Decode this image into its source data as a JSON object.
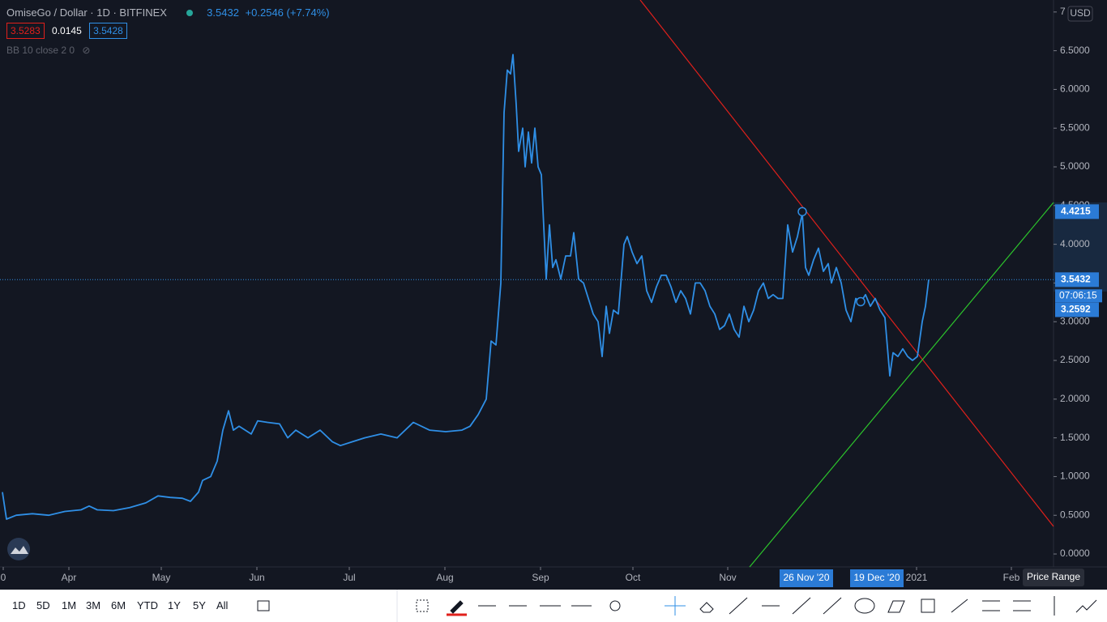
{
  "header": {
    "symbol": "OmiseGo / Dollar · 1D · BITFINEX",
    "last": "3.5432",
    "change": "+0.2546 (+7.74%)",
    "bid": "3.5283",
    "spread": "0.0145",
    "ask": "3.5428",
    "indicator": "BB 10 close 2 0",
    "currency": "USD"
  },
  "chart_data": {
    "type": "line",
    "color": "#2f8fe6",
    "xlim": [
      0,
      1300
    ],
    "ylim": [
      -0.167,
      7.155
    ],
    "x": [
      3,
      8,
      20,
      40,
      60,
      80,
      100,
      110,
      120,
      140,
      160,
      180,
      195,
      210,
      225,
      235,
      245,
      250,
      260,
      268,
      275,
      282,
      288,
      295,
      310,
      318,
      330,
      345,
      355,
      365,
      380,
      395,
      410,
      420,
      435,
      450,
      470,
      490,
      510,
      530,
      550,
      570,
      580,
      590,
      600,
      606,
      612,
      618,
      622,
      626,
      630,
      633,
      637,
      640,
      645,
      648,
      652,
      656,
      660,
      664,
      668,
      674,
      678,
      682,
      686,
      692,
      698,
      704,
      708,
      714,
      720,
      726,
      732,
      738,
      743,
      748,
      752,
      757,
      763,
      770,
      774,
      780,
      786,
      792,
      798,
      804,
      810,
      816,
      822,
      828,
      834,
      840,
      846,
      852,
      858,
      864,
      870,
      876,
      882,
      888,
      894,
      900,
      906,
      912,
      918,
      924,
      930,
      936,
      942,
      948,
      954,
      960,
      966,
      972,
      978,
      984,
      990,
      994,
      998,
      1004,
      1010,
      1016,
      1022,
      1026,
      1032,
      1038,
      1044,
      1050,
      1056,
      1062,
      1068,
      1074,
      1080,
      1086,
      1092,
      1098,
      1102,
      1108,
      1114,
      1120,
      1126,
      1132,
      1138,
      1142,
      1146
    ],
    "values": [
      0.8,
      0.45,
      0.5,
      0.52,
      0.5,
      0.55,
      0.57,
      0.62,
      0.57,
      0.56,
      0.6,
      0.66,
      0.75,
      0.73,
      0.72,
      0.68,
      0.8,
      0.95,
      1.0,
      1.2,
      1.6,
      1.85,
      1.6,
      1.65,
      1.55,
      1.72,
      1.7,
      1.68,
      1.5,
      1.6,
      1.5,
      1.6,
      1.45,
      1.4,
      1.45,
      1.5,
      1.55,
      1.5,
      1.7,
      1.6,
      1.58,
      1.6,
      1.65,
      1.8,
      2.0,
      2.75,
      2.7,
      3.5,
      5.7,
      6.25,
      6.2,
      6.45,
      5.8,
      5.2,
      5.5,
      5.0,
      5.45,
      5.05,
      5.5,
      5.0,
      4.9,
      3.55,
      4.25,
      3.7,
      3.8,
      3.55,
      3.85,
      3.85,
      4.15,
      3.55,
      3.5,
      3.3,
      3.1,
      3.0,
      2.55,
      3.2,
      2.85,
      3.15,
      3.1,
      4.0,
      4.1,
      3.9,
      3.75,
      3.85,
      3.4,
      3.25,
      3.45,
      3.6,
      3.6,
      3.45,
      3.25,
      3.4,
      3.3,
      3.1,
      3.5,
      3.5,
      3.4,
      3.2,
      3.1,
      2.9,
      2.95,
      3.1,
      2.9,
      2.8,
      3.2,
      3.0,
      3.15,
      3.4,
      3.5,
      3.3,
      3.35,
      3.3,
      3.3,
      4.25,
      3.9,
      4.1,
      4.4,
      3.7,
      3.6,
      3.8,
      3.95,
      3.65,
      3.75,
      3.5,
      3.7,
      3.5,
      3.15,
      3.0,
      3.3,
      3.25,
      3.35,
      3.2,
      3.3,
      3.15,
      3.05,
      2.3,
      2.6,
      2.55,
      2.65,
      2.55,
      2.5,
      2.55,
      3.0,
      3.2,
      3.5432
    ],
    "xticks": [
      {
        "value": 4,
        "label": "0"
      },
      {
        "value": 85,
        "label": "Apr"
      },
      {
        "value": 199,
        "label": "May"
      },
      {
        "value": 317,
        "label": "Jun"
      },
      {
        "value": 431,
        "label": "Jul"
      },
      {
        "value": 549,
        "label": "Aug"
      },
      {
        "value": 667,
        "label": "Sep"
      },
      {
        "value": 781,
        "label": "Oct"
      },
      {
        "value": 898,
        "label": "Nov"
      },
      {
        "value": 1131,
        "label": "2021"
      },
      {
        "value": 1248,
        "label": "Feb"
      }
    ],
    "yticks": [
      {
        "value": 0,
        "label": "0.0000"
      },
      {
        "value": 0.5,
        "label": "0.5000"
      },
      {
        "value": 1,
        "label": "1.0000"
      },
      {
        "value": 1.5,
        "label": "1.5000"
      },
      {
        "value": 2,
        "label": "2.0000"
      },
      {
        "value": 2.5,
        "label": "2.5000"
      },
      {
        "value": 3,
        "label": "3.0000"
      },
      {
        "value": 3.5,
        "label": "3.5000"
      },
      {
        "value": 4,
        "label": "4.0000"
      },
      {
        "value": 4.5,
        "label": "4.5000"
      },
      {
        "value": 5,
        "label": "5.0000"
      },
      {
        "value": 5.5,
        "label": "5.5000"
      },
      {
        "value": 6,
        "label": "6.0000"
      },
      {
        "value": 6.5,
        "label": "6.5000"
      },
      7
    ],
    "price_labels": [
      4.4215,
      3.5432,
      3.2592
    ],
    "countdown": "07:06:15"
  },
  "date_labels": [
    "26 Nov '20",
    "19 Dec '20"
  ],
  "tooltip": "Price Range",
  "toolbar": {
    "ranges": [
      "1D",
      "5D",
      "1M",
      "3M",
      "6M",
      "YTD",
      "1Y",
      "5Y",
      "All"
    ]
  }
}
